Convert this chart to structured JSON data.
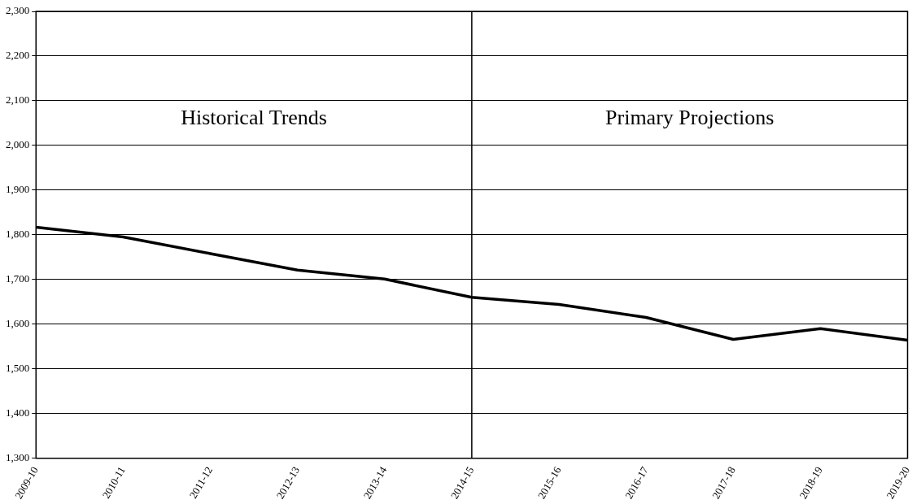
{
  "chart_data": {
    "type": "line",
    "categories": [
      "2009-10",
      "2010-11",
      "2011-12",
      "2012-13",
      "2013-14",
      "2014-15",
      "2015-16",
      "2016-17",
      "2017-18",
      "2018-19",
      "2019-20"
    ],
    "series": [
      {
        "color": "#000000",
        "values": [
          1817,
          1795,
          1758,
          1721,
          1701,
          1660,
          1644,
          1615,
          1566,
          1590,
          1564
        ]
      }
    ],
    "ylim": [
      1300,
      2300
    ],
    "yticks": [
      {
        "value": 1300,
        "label": "1,300"
      },
      {
        "value": 1400,
        "label": "1,400"
      },
      {
        "value": 1500,
        "label": "1,500"
      },
      {
        "value": 1600,
        "label": "1,600"
      },
      {
        "value": 1700,
        "label": "1,700"
      },
      {
        "value": 1800,
        "label": "1,800"
      },
      {
        "value": 1900,
        "label": "1,900"
      },
      {
        "value": 2000,
        "label": "2,000"
      },
      {
        "value": 2100,
        "label": "2,100"
      },
      {
        "value": 2200,
        "label": "2,200"
      },
      {
        "value": 2300,
        "label": "2,300"
      }
    ],
    "grid": "y",
    "legend": false,
    "marker": "none",
    "line_style": "solid",
    "ref_lines": [
      {
        "axis": "x",
        "value": "2014-15",
        "color": "#000000"
      }
    ],
    "annotations": [
      "Historical Trends",
      "Primary Projections"
    ]
  }
}
